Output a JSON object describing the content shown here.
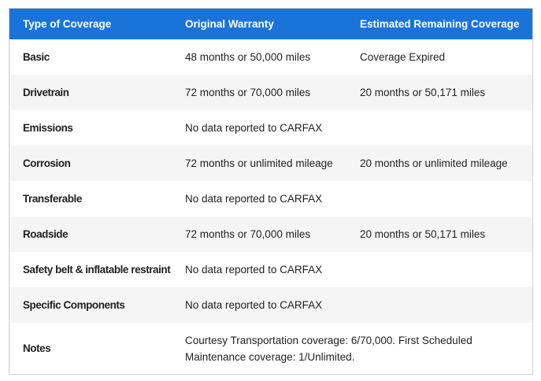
{
  "table": {
    "header": [
      "Type of Coverage",
      "Original Warranty",
      "Estimated Remaining Coverage"
    ],
    "rows": [
      [
        "Basic",
        "48 months or 50,000 miles",
        "Coverage Expired"
      ],
      [
        "Drivetrain",
        "72 months or 70,000 miles",
        "20 months or 50,171 miles"
      ],
      [
        "Emissions",
        "No data reported to CARFAX"
      ],
      [
        "Corrosion",
        "72 months or unlimited mileage",
        "20 months or unlimited mileage"
      ],
      [
        "Transferable",
        "No data reported to CARFAX"
      ],
      [
        "Roadside",
        "72 months or 70,000 miles",
        "20 months or 50,171 miles"
      ],
      [
        "Safety belt & inflatable restraint",
        "No data reported to CARFAX"
      ],
      [
        "Specific Components",
        "No data reported to CARFAX"
      ]
    ],
    "notes": {
      "label": "Notes",
      "text": "Courtesy Transportation coverage: 6/70,000. First Scheduled Maintenance coverage: 1/Unlimited."
    }
  }
}
